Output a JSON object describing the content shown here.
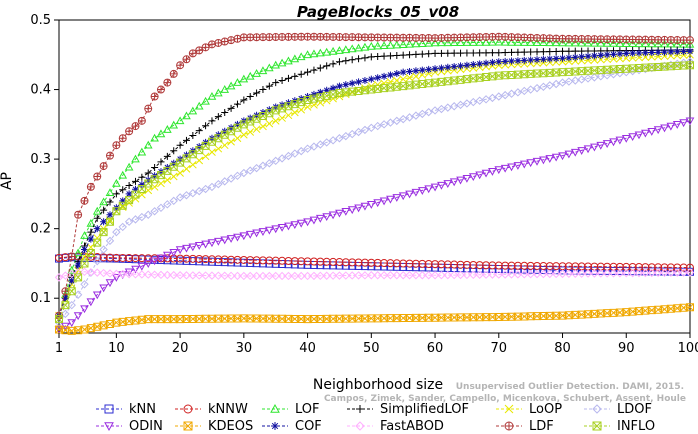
{
  "chart_data": {
    "type": "line",
    "title": "PageBlocks_05_v08",
    "xlabel": "Neighborhood size",
    "ylabel": "AP",
    "xlim": [
      1,
      100
    ],
    "ylim": [
      0.05,
      0.5
    ],
    "xticks": [
      1,
      10,
      20,
      30,
      40,
      50,
      60,
      70,
      80,
      90,
      100
    ],
    "yticks": [
      0.1,
      0.2,
      0.3,
      0.4,
      0.5
    ],
    "grid": false,
    "legend_position": "bottom",
    "credit": "Campos, Zimek, Sander, Campello, Micenkova, Schubert, Assent, Houle",
    "credit_partial": "Unsupervised Outlier Detection. DAMI, 2015.",
    "series": [
      {
        "name": "kNN",
        "color": "#2b2bd0",
        "marker": "square",
        "points": [
          [
            1,
            0.157
          ],
          [
            3,
            0.159
          ],
          [
            5,
            0.158
          ],
          [
            10,
            0.157
          ],
          [
            20,
            0.154
          ],
          [
            30,
            0.151
          ],
          [
            40,
            0.148
          ],
          [
            50,
            0.146
          ],
          [
            60,
            0.144
          ],
          [
            70,
            0.142
          ],
          [
            80,
            0.14
          ],
          [
            90,
            0.139
          ],
          [
            100,
            0.138
          ]
        ]
      },
      {
        "name": "kNNW",
        "color": "#d02020",
        "marker": "circle",
        "points": [
          [
            1,
            0.158
          ],
          [
            3,
            0.16
          ],
          [
            5,
            0.16
          ],
          [
            10,
            0.158
          ],
          [
            20,
            0.157
          ],
          [
            30,
            0.155
          ],
          [
            40,
            0.153
          ],
          [
            50,
            0.151
          ],
          [
            60,
            0.149
          ],
          [
            70,
            0.147
          ],
          [
            80,
            0.146
          ],
          [
            90,
            0.145
          ],
          [
            100,
            0.144
          ]
        ]
      },
      {
        "name": "LOF",
        "color": "#2ee62e",
        "marker": "triangle-up",
        "points": [
          [
            1,
            0.075
          ],
          [
            2,
            0.105
          ],
          [
            3,
            0.14
          ],
          [
            5,
            0.19
          ],
          [
            7,
            0.225
          ],
          [
            10,
            0.265
          ],
          [
            13,
            0.3
          ],
          [
            16,
            0.33
          ],
          [
            20,
            0.355
          ],
          [
            25,
            0.39
          ],
          [
            30,
            0.415
          ],
          [
            35,
            0.435
          ],
          [
            40,
            0.45
          ],
          [
            50,
            0.462
          ],
          [
            60,
            0.467
          ],
          [
            70,
            0.468
          ],
          [
            80,
            0.467
          ],
          [
            90,
            0.466
          ],
          [
            100,
            0.465
          ]
        ]
      },
      {
        "name": "SimplifiedLOF",
        "color": "#000000",
        "marker": "plus",
        "points": [
          [
            1,
            0.075
          ],
          [
            2,
            0.1
          ],
          [
            3,
            0.13
          ],
          [
            5,
            0.175
          ],
          [
            7,
            0.215
          ],
          [
            10,
            0.25
          ],
          [
            15,
            0.28
          ],
          [
            20,
            0.32
          ],
          [
            25,
            0.355
          ],
          [
            30,
            0.385
          ],
          [
            35,
            0.41
          ],
          [
            40,
            0.425
          ],
          [
            45,
            0.44
          ],
          [
            50,
            0.447
          ],
          [
            60,
            0.452
          ],
          [
            70,
            0.453
          ],
          [
            80,
            0.455
          ],
          [
            90,
            0.456
          ],
          [
            100,
            0.457
          ]
        ]
      },
      {
        "name": "LoOP",
        "color": "#e8e800",
        "marker": "cross",
        "points": [
          [
            1,
            0.075
          ],
          [
            3,
            0.12
          ],
          [
            5,
            0.16
          ],
          [
            8,
            0.2
          ],
          [
            10,
            0.225
          ],
          [
            15,
            0.255
          ],
          [
            20,
            0.28
          ],
          [
            25,
            0.31
          ],
          [
            30,
            0.335
          ],
          [
            35,
            0.355
          ],
          [
            40,
            0.375
          ],
          [
            45,
            0.39
          ],
          [
            50,
            0.405
          ],
          [
            55,
            0.415
          ],
          [
            60,
            0.425
          ],
          [
            70,
            0.435
          ],
          [
            80,
            0.44
          ],
          [
            90,
            0.445
          ],
          [
            100,
            0.45
          ]
        ]
      },
      {
        "name": "LDOF",
        "color": "#b8b8ee",
        "marker": "diamond",
        "points": [
          [
            1,
            0.065
          ],
          [
            3,
            0.09
          ],
          [
            5,
            0.12
          ],
          [
            8,
            0.17
          ],
          [
            10,
            0.195
          ],
          [
            12,
            0.21
          ],
          [
            15,
            0.22
          ],
          [
            20,
            0.245
          ],
          [
            25,
            0.26
          ],
          [
            30,
            0.28
          ],
          [
            40,
            0.315
          ],
          [
            50,
            0.345
          ],
          [
            60,
            0.37
          ],
          [
            70,
            0.39
          ],
          [
            80,
            0.41
          ],
          [
            90,
            0.425
          ],
          [
            100,
            0.44
          ]
        ]
      },
      {
        "name": "ODIN",
        "color": "#9a2ee0",
        "marker": "triangle-down",
        "points": [
          [
            1,
            0.055
          ],
          [
            3,
            0.065
          ],
          [
            5,
            0.085
          ],
          [
            8,
            0.115
          ],
          [
            10,
            0.13
          ],
          [
            15,
            0.15
          ],
          [
            20,
            0.17
          ],
          [
            25,
            0.18
          ],
          [
            30,
            0.19
          ],
          [
            35,
            0.2
          ],
          [
            40,
            0.21
          ],
          [
            50,
            0.235
          ],
          [
            60,
            0.26
          ],
          [
            70,
            0.285
          ],
          [
            80,
            0.305
          ],
          [
            90,
            0.33
          ],
          [
            100,
            0.355
          ]
        ]
      },
      {
        "name": "KDEOS",
        "color": "#f0a800",
        "marker": "square-x",
        "points": [
          [
            1,
            0.055
          ],
          [
            3,
            0.053
          ],
          [
            5,
            0.055
          ],
          [
            10,
            0.065
          ],
          [
            15,
            0.07
          ],
          [
            20,
            0.07
          ],
          [
            30,
            0.071
          ],
          [
            40,
            0.07
          ],
          [
            50,
            0.071
          ],
          [
            60,
            0.072
          ],
          [
            70,
            0.073
          ],
          [
            80,
            0.075
          ],
          [
            90,
            0.08
          ],
          [
            100,
            0.087
          ]
        ]
      },
      {
        "name": "COF",
        "color": "#1010a0",
        "marker": "asterisk",
        "points": [
          [
            1,
            0.075
          ],
          [
            2,
            0.1
          ],
          [
            3,
            0.125
          ],
          [
            5,
            0.17
          ],
          [
            7,
            0.2
          ],
          [
            10,
            0.23
          ],
          [
            12,
            0.25
          ],
          [
            15,
            0.27
          ],
          [
            20,
            0.3
          ],
          [
            25,
            0.33
          ],
          [
            30,
            0.355
          ],
          [
            35,
            0.375
          ],
          [
            40,
            0.39
          ],
          [
            45,
            0.405
          ],
          [
            50,
            0.415
          ],
          [
            55,
            0.425
          ],
          [
            60,
            0.43
          ],
          [
            70,
            0.44
          ],
          [
            80,
            0.445
          ],
          [
            90,
            0.452
          ],
          [
            100,
            0.455
          ]
        ]
      },
      {
        "name": "FastABOD",
        "color": "#ffb0ff",
        "marker": "diamond",
        "points": [
          [
            1,
            0.13
          ],
          [
            3,
            0.135
          ],
          [
            5,
            0.138
          ],
          [
            10,
            0.135
          ],
          [
            20,
            0.133
          ],
          [
            30,
            0.132
          ],
          [
            40,
            0.132
          ],
          [
            50,
            0.133
          ],
          [
            60,
            0.133
          ],
          [
            70,
            0.134
          ],
          [
            80,
            0.135
          ],
          [
            90,
            0.136
          ],
          [
            100,
            0.137
          ]
        ]
      },
      {
        "name": "LDF",
        "color": "#b03a3a",
        "marker": "circle-plus",
        "points": [
          [
            1,
            0.075
          ],
          [
            2,
            0.11
          ],
          [
            3,
            0.16
          ],
          [
            4,
            0.22
          ],
          [
            5,
            0.24
          ],
          [
            6,
            0.26
          ],
          [
            8,
            0.29
          ],
          [
            10,
            0.32
          ],
          [
            12,
            0.34
          ],
          [
            14,
            0.355
          ],
          [
            16,
            0.39
          ],
          [
            18,
            0.41
          ],
          [
            20,
            0.435
          ],
          [
            22,
            0.452
          ],
          [
            25,
            0.465
          ],
          [
            30,
            0.475
          ],
          [
            40,
            0.476
          ],
          [
            50,
            0.475
          ],
          [
            60,
            0.474
          ],
          [
            70,
            0.476
          ],
          [
            80,
            0.473
          ],
          [
            90,
            0.472
          ],
          [
            100,
            0.471
          ]
        ]
      },
      {
        "name": "INFLO",
        "color": "#a8d020",
        "marker": "square-x",
        "points": [
          [
            1,
            0.07
          ],
          [
            3,
            0.11
          ],
          [
            5,
            0.15
          ],
          [
            8,
            0.195
          ],
          [
            10,
            0.225
          ],
          [
            15,
            0.265
          ],
          [
            20,
            0.295
          ],
          [
            25,
            0.325
          ],
          [
            30,
            0.35
          ],
          [
            35,
            0.37
          ],
          [
            40,
            0.385
          ],
          [
            45,
            0.395
          ],
          [
            50,
            0.4
          ],
          [
            60,
            0.41
          ],
          [
            70,
            0.42
          ],
          [
            80,
            0.425
          ],
          [
            90,
            0.43
          ],
          [
            100,
            0.435
          ]
        ]
      }
    ],
    "legend_order": [
      "kNN",
      "kNNW",
      "LOF",
      "SimplifiedLOF",
      "LoOP",
      "LDOF",
      "ODIN",
      "KDEOS",
      "COF",
      "FastABOD",
      "LDF",
      "INFLO"
    ]
  }
}
